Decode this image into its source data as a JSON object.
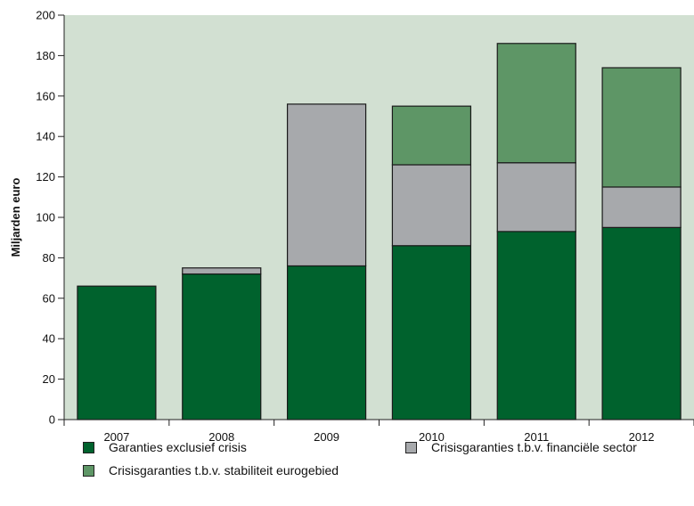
{
  "chart_data": {
    "type": "bar",
    "stacked": true,
    "categories": [
      "2007",
      "2008",
      "2009",
      "2010",
      "2011",
      "2012"
    ],
    "series": [
      {
        "name": "Garanties exclusief crisis",
        "color": "#00622d",
        "values": [
          66,
          72,
          76,
          86,
          93,
          95
        ]
      },
      {
        "name": "Crisisgaranties t.b.v. financiële sector",
        "color": "#a7a9ac",
        "values": [
          0,
          3,
          80,
          40,
          34,
          20
        ]
      },
      {
        "name": "Crisisgaranties t.b.v. stabiliteit eurogebied",
        "color": "#5e9666",
        "values": [
          0,
          0,
          0,
          29,
          59,
          59
        ]
      }
    ],
    "ylabel": "Miljarden euro",
    "ylim": [
      0,
      200
    ],
    "yticks": [
      "0",
      "20",
      "40",
      "60",
      "80",
      "100",
      "120",
      "140",
      "160",
      "180",
      "200"
    ],
    "grid": false,
    "plot_background": "#d2e0d2",
    "legend_position": "bottom"
  }
}
